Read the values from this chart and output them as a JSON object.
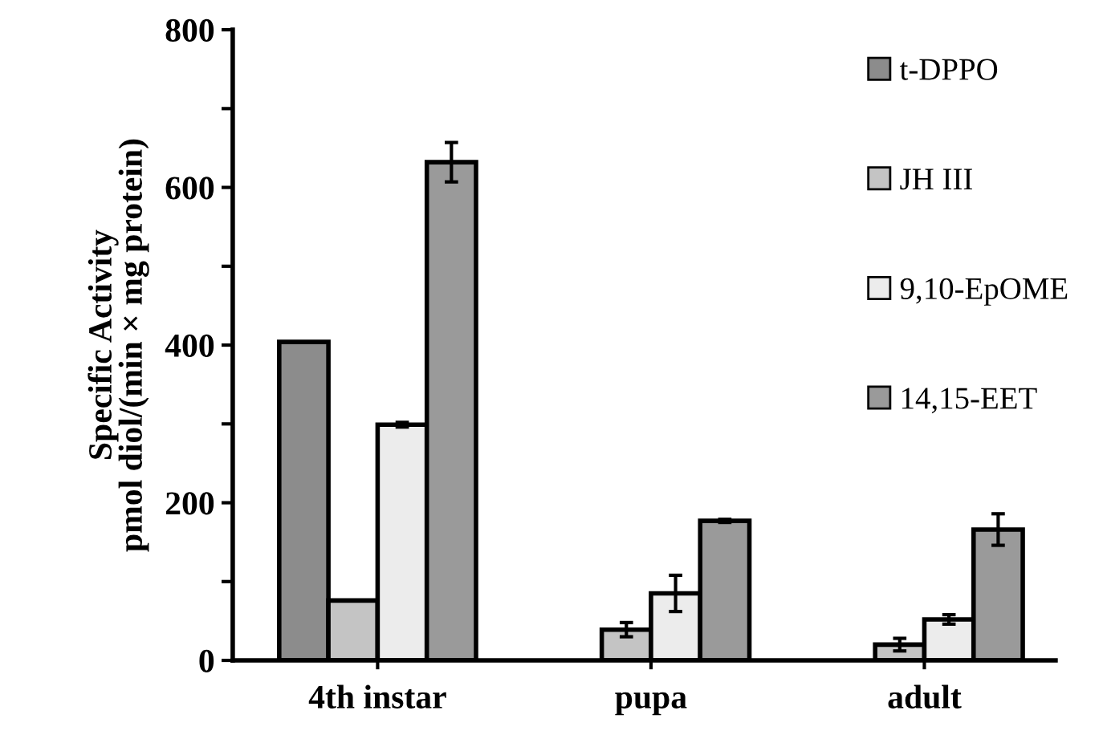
{
  "chart_data": {
    "type": "bar",
    "ylabel": "Specific Activity\npmol diol/(min × mg protein)",
    "categories": [
      "4th instar",
      "pupa",
      "adult"
    ],
    "series": [
      {
        "name": "t-DPPO",
        "color": "#8c8c8c",
        "values": [
          404,
          null,
          null
        ]
      },
      {
        "name": "JH III",
        "color": "#c4c4c4",
        "values": [
          76,
          39,
          20
        ],
        "errors": [
          null,
          9,
          8
        ]
      },
      {
        "name": "9,10-EpOME",
        "color": "#ececec",
        "values": [
          299,
          85,
          52
        ],
        "errors": [
          3,
          23,
          6
        ]
      },
      {
        "name": "14,15-EET",
        "color": "#9a9a9a",
        "values": [
          632,
          177,
          166
        ],
        "errors": [
          25,
          2,
          20
        ]
      }
    ],
    "ylim": [
      0,
      800
    ],
    "yticks": [
      0,
      {
        "value": 100,
        "label": null
      },
      200,
      {
        "value": 300,
        "label": null
      },
      400,
      {
        "value": 500,
        "label": null
      },
      600,
      {
        "value": 700,
        "label": null
      },
      800
    ],
    "legend": "top right",
    "grid": false
  }
}
